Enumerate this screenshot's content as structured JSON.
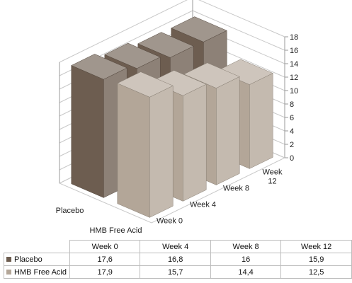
{
  "chart_data": {
    "type": "bar",
    "subtype": "3d-column",
    "categories": [
      "Week 0",
      "Week 4",
      "Week 8",
      "Week 12"
    ],
    "category_labels": [
      "Week 0",
      "Week 4",
      "Week 8",
      [
        "Week",
        "12"
      ]
    ],
    "series": [
      {
        "name": "Placebo",
        "values": [
          17.6,
          16.8,
          16,
          15.9
        ],
        "value_labels": [
          "17,6",
          "16,8",
          "16",
          "15,9"
        ],
        "color": "#6d5d50"
      },
      {
        "name": "HMB Free Acid",
        "values": [
          17.9,
          15.7,
          14.4,
          12.5
        ],
        "value_labels": [
          "17,9",
          "15,7",
          "14,4",
          "12,5"
        ],
        "color": "#b3a698"
      }
    ],
    "ylim": [
      0,
      18
    ],
    "yticks": [
      "0",
      "2",
      "4",
      "6",
      "8",
      "10",
      "12",
      "14",
      "16",
      "18"
    ],
    "grid": true,
    "data_table": true
  }
}
